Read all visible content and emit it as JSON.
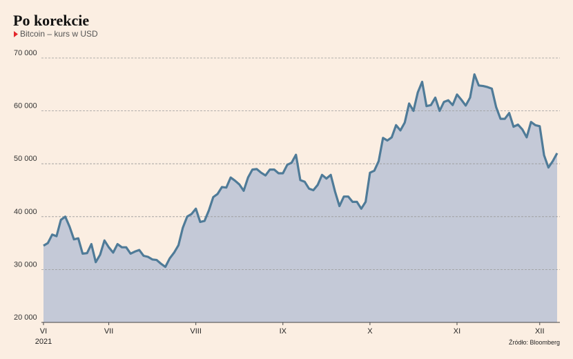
{
  "chart_data": {
    "type": "area",
    "title": "Po korekcie",
    "subtitle": "Bitcoin – kurs w USD",
    "source": "Źródło: Bloomberg",
    "year_label": "2021",
    "line_color": "#4f7b98",
    "fill_color": "#c4c9d7",
    "grid": true,
    "ylim": [
      20000,
      70000
    ],
    "yticks": [
      {
        "value": 20000,
        "label": "20 000"
      },
      {
        "value": 30000,
        "label": "30 000"
      },
      {
        "value": 40000,
        "label": "40 000"
      },
      {
        "value": 50000,
        "label": "50 000"
      },
      {
        "value": 60000,
        "label": "60 000"
      },
      {
        "value": 70000,
        "label": "70 000"
      }
    ],
    "categories": [
      "VI",
      null,
      null,
      null,
      null,
      null,
      null,
      null,
      null,
      null,
      null,
      null,
      null,
      null,
      null,
      "VII",
      null,
      null,
      null,
      null,
      null,
      null,
      null,
      null,
      null,
      null,
      null,
      null,
      null,
      null,
      null,
      null,
      null,
      null,
      null,
      "VIII",
      null,
      null,
      null,
      null,
      null,
      null,
      null,
      null,
      null,
      null,
      null,
      null,
      null,
      null,
      null,
      null,
      null,
      null,
      null,
      "IX",
      null,
      null,
      null,
      null,
      null,
      null,
      null,
      null,
      null,
      null,
      null,
      null,
      null,
      null,
      null,
      null,
      null,
      null,
      null,
      "X",
      null,
      null,
      null,
      null,
      null,
      null,
      null,
      null,
      null,
      null,
      null,
      null,
      null,
      null,
      null,
      null,
      null,
      null,
      null,
      "XI",
      null,
      null,
      null,
      null,
      null,
      null,
      null,
      null,
      null,
      null,
      null,
      null,
      null,
      null,
      null,
      null,
      null,
      null,
      "XII",
      null,
      null,
      null,
      null
    ],
    "values": [
      34500,
      35000,
      36600,
      36300,
      39400,
      40000,
      38100,
      35700,
      35900,
      33000,
      33100,
      34800,
      31400,
      32800,
      35500,
      34200,
      33200,
      34800,
      34200,
      34200,
      33000,
      33400,
      33700,
      32600,
      32400,
      31900,
      31800,
      31100,
      30500,
      32100,
      33200,
      34600,
      37900,
      40000,
      40500,
      41500,
      39000,
      39200,
      41200,
      43700,
      44300,
      45600,
      45500,
      47400,
      46800,
      46100,
      44900,
      47400,
      48900,
      49000,
      48300,
      47800,
      48900,
      48900,
      48200,
      48200,
      49800,
      50200,
      51700,
      46900,
      46600,
      45300,
      45000,
      46000,
      47900,
      47200,
      47900,
      44700,
      42000,
      43800,
      43800,
      42800,
      42800,
      41500,
      42800,
      48300,
      48700,
      50500,
      54900,
      54400,
      55000,
      57300,
      56300,
      57800,
      61400,
      60000,
      63500,
      65500,
      60900,
      61100,
      62500,
      60000,
      61700,
      62000,
      61100,
      63100,
      62100,
      61000,
      62500,
      66900,
      64800,
      64700,
      64500,
      64200,
      60700,
      58500,
      58500,
      59600,
      57000,
      57400,
      56500,
      55000,
      57900,
      57300,
      57100,
      51600,
      49300,
      50500,
      52000
    ]
  }
}
